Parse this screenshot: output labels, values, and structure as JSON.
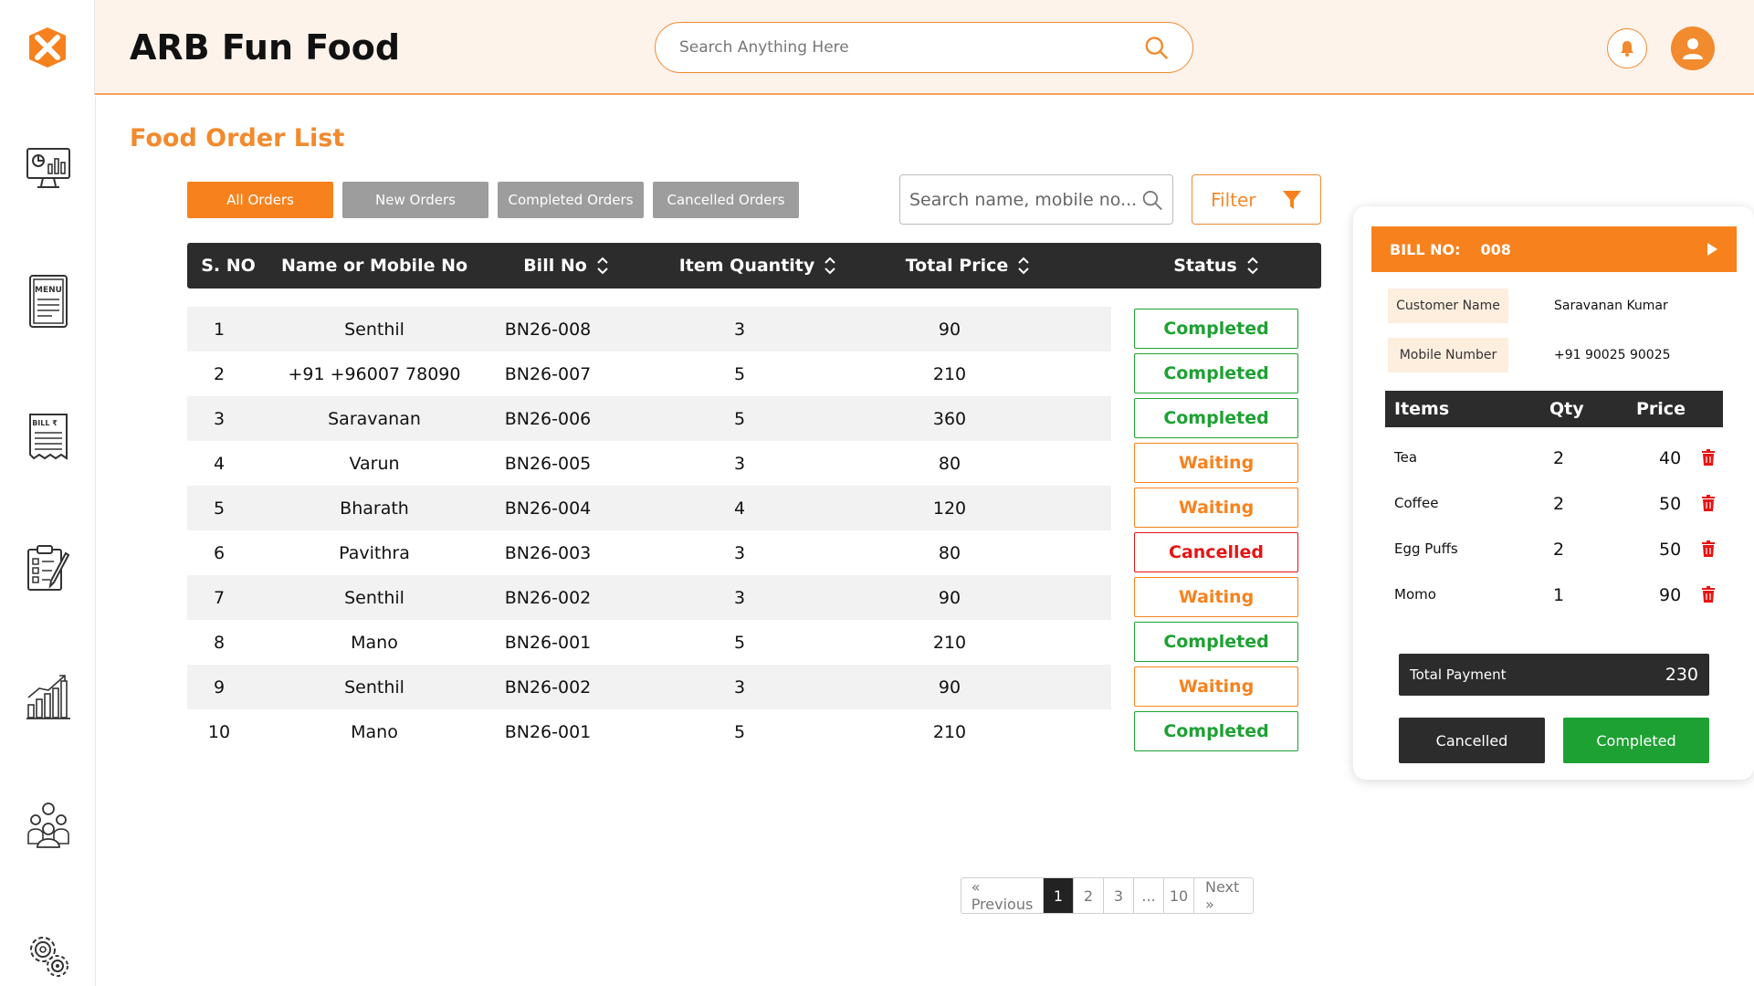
{
  "app": {
    "title": "ARB Fun Food"
  },
  "header": {
    "search_placeholder": "Search Anything Here"
  },
  "sidebar": {
    "items": [
      {
        "name": "dashboard-icon"
      },
      {
        "name": "menu-icon",
        "label": "MENU"
      },
      {
        "name": "bill-icon",
        "label": "BILL ₹"
      },
      {
        "name": "orders-checklist-icon"
      },
      {
        "name": "analytics-icon"
      },
      {
        "name": "team-icon"
      },
      {
        "name": "settings-icon"
      }
    ]
  },
  "page": {
    "title": "Food Order List"
  },
  "tabs": [
    {
      "label": "All Orders",
      "active": true
    },
    {
      "label": "New Orders",
      "active": false
    },
    {
      "label": "Completed Orders",
      "active": false
    },
    {
      "label": "Cancelled Orders",
      "active": false
    }
  ],
  "list_search": {
    "placeholder": "Search name, mobile no..."
  },
  "filter": {
    "label": "Filter"
  },
  "table": {
    "headers": [
      "S. NO",
      "Name or Mobile No",
      "Bill No",
      "Item Quantity",
      "Total Price",
      "Status"
    ],
    "rows": [
      {
        "sno": "1",
        "name": "Senthil",
        "bill": "BN26-008",
        "qty": "3",
        "price": "90",
        "status": "Completed"
      },
      {
        "sno": "2",
        "name": "+91 +96007 78090",
        "bill": "BN26-007",
        "qty": "5",
        "price": "210",
        "status": "Completed"
      },
      {
        "sno": "3",
        "name": "Saravanan",
        "bill": "BN26-006",
        "qty": "5",
        "price": "360",
        "status": "Completed"
      },
      {
        "sno": "4",
        "name": "Varun",
        "bill": "BN26-005",
        "qty": "3",
        "price": "80",
        "status": "Waiting"
      },
      {
        "sno": "5",
        "name": "Bharath",
        "bill": "BN26-004",
        "qty": "4",
        "price": "120",
        "status": "Waiting"
      },
      {
        "sno": "6",
        "name": "Pavithra",
        "bill": "BN26-003",
        "qty": "3",
        "price": "80",
        "status": "Cancelled"
      },
      {
        "sno": "7",
        "name": "Senthil",
        "bill": "BN26-002",
        "qty": "3",
        "price": "90",
        "status": "Waiting"
      },
      {
        "sno": "8",
        "name": "Mano",
        "bill": "BN26-001",
        "qty": "5",
        "price": "210",
        "status": "Completed"
      },
      {
        "sno": "9",
        "name": "Senthil",
        "bill": "BN26-002",
        "qty": "3",
        "price": "90",
        "status": "Waiting"
      },
      {
        "sno": "10",
        "name": "Mano",
        "bill": "BN26-001",
        "qty": "5",
        "price": "210",
        "status": "Completed"
      }
    ]
  },
  "pagination": {
    "previous": "« Previous",
    "pages": [
      "1",
      "2",
      "3",
      "...",
      "10"
    ],
    "current": "1",
    "next": "Next »"
  },
  "bill": {
    "label": "BILL NO:",
    "number": "008",
    "customer_label": "Customer Name",
    "customer_name": "Saravanan Kumar",
    "mobile_label": "Mobile Number",
    "mobile": "+91 90025 90025",
    "items_headers": {
      "item": "Items",
      "qty": "Qty",
      "price": "Price"
    },
    "items": [
      {
        "name": "Tea",
        "qty": "2",
        "price": "40"
      },
      {
        "name": "Coffee",
        "qty": "2",
        "price": "50"
      },
      {
        "name": "Egg Puffs",
        "qty": "2",
        "price": "50"
      },
      {
        "name": "Momo",
        "qty": "1",
        "price": "90"
      }
    ],
    "total_label": "Total Payment",
    "total_value": "230",
    "cancel_label": "Cancelled",
    "complete_label": "Completed"
  },
  "colors": {
    "accent": "#f7821d",
    "completed": "#1ea133",
    "waiting": "#f7821d",
    "cancelled": "#e61414",
    "dark": "#2c2c2c"
  }
}
